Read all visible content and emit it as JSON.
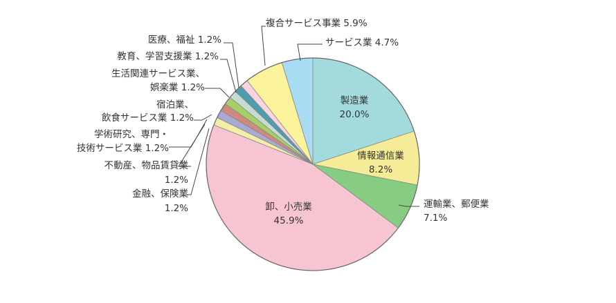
{
  "chart_data": {
    "type": "pie",
    "unit": "%",
    "slices": [
      {
        "name": "製造業",
        "value": 20.0,
        "value_label": "20.0%",
        "color": "#a3dbdd"
      },
      {
        "name": "情報通信業",
        "value": 8.2,
        "value_label": "8.2%",
        "color": "#f6eb96"
      },
      {
        "name": "運輸業、郵便業",
        "value": 7.1,
        "value_label": "7.1%",
        "color": "#86cc82"
      },
      {
        "name": "卸、小売業",
        "value": 45.9,
        "value_label": "45.9%",
        "color": "#f7c4d1"
      },
      {
        "name": "金融、保険業",
        "value": 1.2,
        "value_label": "1.2%",
        "color": "#f3efa6"
      },
      {
        "name": "不動産、物品賃貸業",
        "value": 1.2,
        "value_label": "1.2%",
        "color": "#aaa9d6"
      },
      {
        "name": "学術研究、専門・技術サービス業",
        "value": 1.2,
        "value_label": "1.2%",
        "color": "#cf8a7e"
      },
      {
        "name": "宿泊業、飲食サービス業",
        "value": 1.2,
        "value_label": "1.2%",
        "color": "#a6d067"
      },
      {
        "name": "生活関連サービス業、娯楽業",
        "value": 1.2,
        "value_label": "1.2%",
        "color": "#c4dcd2"
      },
      {
        "name": "教育、学習支援業",
        "value": 1.2,
        "value_label": "1.2%",
        "color": "#4f9bb0"
      },
      {
        "name": "医療、福祉",
        "value": 1.2,
        "value_label": "1.2%",
        "color": "#fad3e0"
      },
      {
        "name": "複合サービス事業",
        "value": 5.9,
        "value_label": "5.9%",
        "color": "#fbf29c"
      },
      {
        "name": "サービス業",
        "value": 4.7,
        "value_label": "4.7%",
        "color": "#a8dcf2"
      }
    ],
    "labels": [
      {
        "lines": [
          "製造業",
          "20.0%"
        ]
      },
      {
        "lines": [
          "情報通信業",
          "8.2%"
        ]
      },
      {
        "lines": [
          "運輸業、郵便業",
          "7.1%"
        ]
      },
      {
        "lines": [
          "卸、小売業",
          "45.9%"
        ]
      },
      {
        "lines": [
          "金融、保険業",
          "1.2%"
        ]
      },
      {
        "lines": [
          "不動産、物品賃貸業",
          "1.2%"
        ]
      },
      {
        "lines": [
          "学術研究、専門・",
          "技術サービス業 1.2%"
        ]
      },
      {
        "lines": [
          "宿泊業、",
          "飲食サービス業 1.2%"
        ]
      },
      {
        "lines": [
          "生活関連サービス業、",
          "娯楽業 1.2%"
        ]
      },
      {
        "lines": [
          "教育、学習支援業 1.2%"
        ]
      },
      {
        "lines": [
          "医療、福祉 1.2%"
        ]
      },
      {
        "lines": [
          "複合サービス事業 5.9%"
        ]
      },
      {
        "lines": [
          "サービス業 4.7%"
        ]
      }
    ]
  }
}
